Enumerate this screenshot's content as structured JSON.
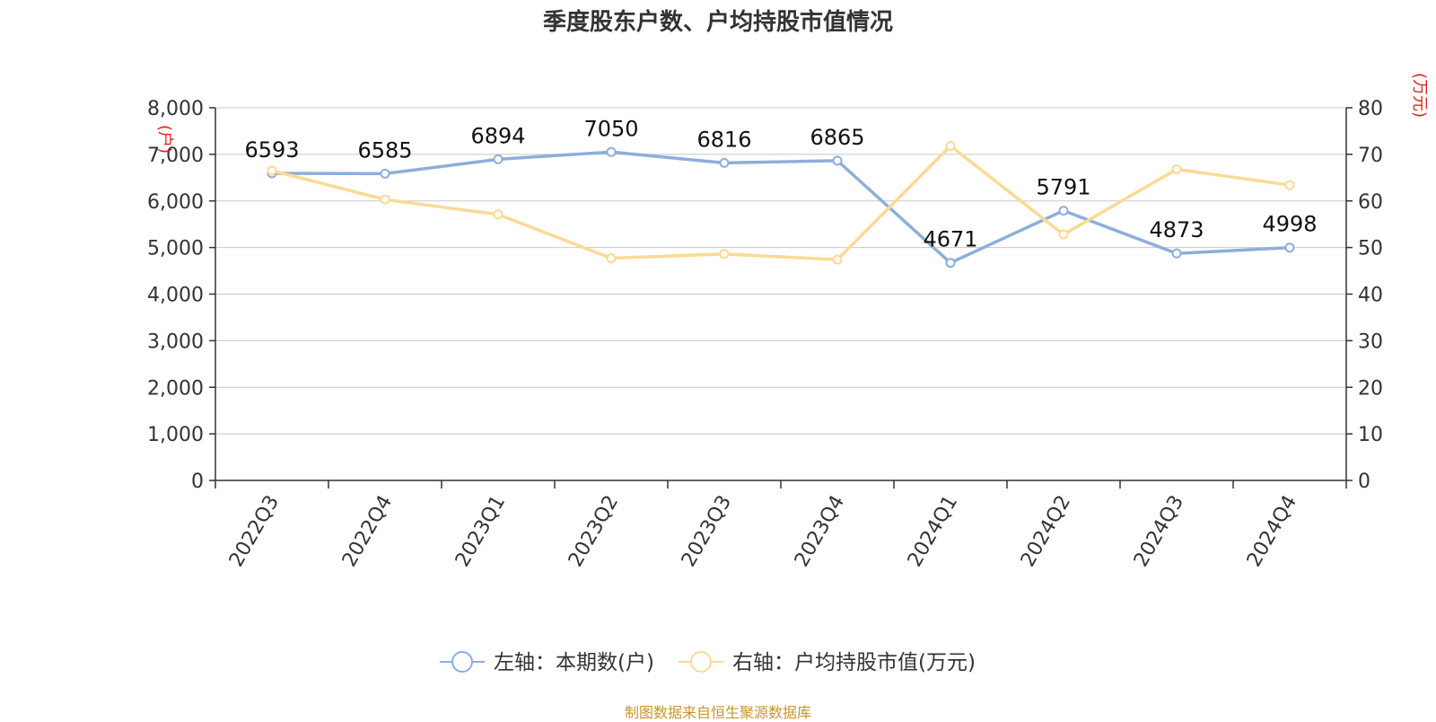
{
  "title": "季度股东户数、户均持股市值情况",
  "source_note": "制图数据来自恒生聚源数据库",
  "left_axis_unit": "(户)",
  "right_axis_unit": "(万元)",
  "colors": {
    "series_left": "#8eaedb",
    "series_right": "#fbd996",
    "unit_label": "#e02020",
    "grid": "#c8c8c8",
    "axis": "#333333",
    "text": "#333333",
    "source": "#c8962a"
  },
  "chart_data": {
    "type": "line",
    "title": "季度股东户数、户均持股市值情况",
    "categories": [
      "2022Q3",
      "2022Q4",
      "2023Q1",
      "2023Q2",
      "2023Q3",
      "2023Q4",
      "2024Q1",
      "2024Q2",
      "2024Q3",
      "2024Q4"
    ],
    "y_left": {
      "label": "(户)",
      "ylim": [
        0,
        8000
      ],
      "ticks": [
        "0",
        "1,000",
        "2,000",
        "3,000",
        "4,000",
        "5,000",
        "6,000",
        "7,000",
        "8,000"
      ]
    },
    "y_right": {
      "label": "(万元)",
      "ylim": [
        0,
        80
      ],
      "ticks": [
        "0",
        "10",
        "20",
        "30",
        "40",
        "50",
        "60",
        "70",
        "80"
      ]
    },
    "grid": true,
    "legend_position": "bottom",
    "series": [
      {
        "name": "左轴：本期数(户)",
        "axis": "left",
        "values": [
          6593,
          6585,
          6894,
          7050,
          6816,
          6865,
          4671,
          5791,
          4873,
          4998
        ],
        "data_labels": [
          "6593",
          "6585",
          "6894",
          "7050",
          "6816",
          "6865",
          "4671",
          "5791",
          "4873",
          "4998"
        ]
      },
      {
        "name": "右轴：户均持股市值(万元)",
        "axis": "right",
        "values": [
          66.5,
          60.3,
          57.1,
          47.7,
          48.6,
          47.4,
          71.8,
          52.8,
          66.8,
          63.4
        ]
      }
    ]
  }
}
